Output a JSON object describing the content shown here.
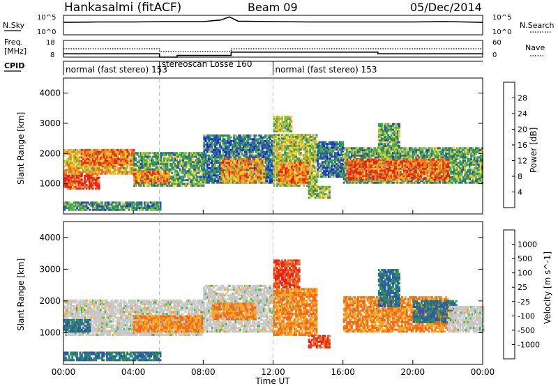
{
  "header": {
    "title": "Hankasalmi (fitACF)",
    "beam": "Beam 09",
    "date": "05/Dec/2014"
  },
  "nsky_panel": {
    "left_label": "N.Sky",
    "right_label": "N.Search",
    "left_ticks": [
      "10^5",
      "10^0"
    ],
    "right_ticks": [
      "10^5",
      "10^0"
    ]
  },
  "freq_panel": {
    "left_label_1": "Freq.",
    "left_label_2": "[MHz]",
    "right_label": "Nave",
    "left_ticks": [
      "18",
      "8"
    ],
    "right_ticks": [
      "60",
      "0"
    ]
  },
  "cpid": {
    "label": "CPID",
    "segments": [
      {
        "text": "normal (fast stereo) 153",
        "start_hour": 0
      },
      {
        "text": "stereoscan Losse 160",
        "start_hour": 5.5
      },
      {
        "text": "normal (fast stereo) 153",
        "start_hour": 12
      }
    ]
  },
  "power_panel": {
    "ylabel": "Slant Range [km]",
    "yticks": [
      "4000",
      "3000",
      "2000",
      "1000"
    ],
    "colorbar_label": "Power [dB]",
    "colorbar_ticks": [
      "28",
      "24",
      "20",
      "16",
      "12",
      "8",
      "4"
    ],
    "colors": [
      "#1a1aff",
      "#2a4fb0",
      "#2e7f6e",
      "#3aa35a",
      "#8fc03a",
      "#f0d02a",
      "#f5a623",
      "#f06a1e",
      "#e8231c"
    ]
  },
  "velocity_panel": {
    "ylabel": "Slant Range [km]",
    "yticks": [
      "4000",
      "3000",
      "2000",
      "1000"
    ],
    "colorbar_label": "Velocity [m s^-1]",
    "colorbar_ticks": [
      "1000",
      "500",
      "100",
      "25",
      "-25",
      "-100",
      "-500",
      "-1000"
    ],
    "colors": [
      "#1a3cff",
      "#2a5aa8",
      "#2e8a60",
      "#47b848",
      "#c8c8c8",
      "#c8c8c8",
      "#f5a623",
      "#f06a1e",
      "#e8231c"
    ]
  },
  "xaxis": {
    "label": "Time UT",
    "ticks": [
      "00:00",
      "04:00",
      "08:00",
      "12:00",
      "16:00",
      "20:00",
      "00:00"
    ]
  },
  "chart_data": [
    {
      "type": "line",
      "title": "N.Sky / N.Search",
      "x_unit": "hour UT",
      "xlim": [
        0,
        24
      ],
      "ylim": [
        0,
        5
      ],
      "note_scale": "log10",
      "series": [
        {
          "name": "N.Sky",
          "x": [
            0,
            2,
            4,
            6,
            8,
            9,
            9.5,
            10,
            12,
            14,
            16,
            18,
            20,
            22,
            24
          ],
          "values": [
            3.2,
            3.3,
            3.3,
            3.4,
            3.4,
            3.8,
            4.6,
            3.5,
            3.4,
            3.3,
            3.3,
            3.3,
            3.3,
            3.4,
            3.2
          ]
        }
      ]
    },
    {
      "type": "line",
      "title": "Freq / Nave",
      "x_unit": "hour UT",
      "xlim": [
        0,
        24
      ],
      "series": [
        {
          "name": "Freq",
          "x": [
            0,
            5.5,
            5.5,
            6.5,
            6.5,
            9.6,
            9.6,
            18,
            18,
            24
          ],
          "values": [
            10,
            10,
            8,
            8,
            9,
            9,
            11,
            11,
            10,
            10
          ]
        },
        {
          "name": "Nave",
          "x": [
            0,
            5.5,
            5.5,
            9.6,
            9.6,
            24
          ],
          "values": [
            30,
            30,
            20,
            20,
            30,
            30
          ]
        }
      ]
    },
    {
      "type": "heatmap",
      "title": "Power [dB]",
      "x_unit": "hour UT",
      "y_unit": "km",
      "xlim": [
        0,
        24
      ],
      "ylim": [
        0,
        4500
      ],
      "clim": [
        0,
        30
      ],
      "regions": [
        {
          "t0": 0.0,
          "t1": 2.0,
          "r0": 800,
          "r1": 1300,
          "value": 28
        },
        {
          "t0": 0.0,
          "t1": 4.0,
          "r0": 1300,
          "r1": 2100,
          "value": 20
        },
        {
          "t0": 1.0,
          "t1": 4.0,
          "r0": 1600,
          "r1": 2100,
          "value": 24
        },
        {
          "t0": 4.0,
          "t1": 8.0,
          "r0": 900,
          "r1": 2000,
          "value": 12
        },
        {
          "t0": 4.0,
          "t1": 6.0,
          "r0": 1000,
          "r1": 1400,
          "value": 24
        },
        {
          "t0": 8.0,
          "t1": 12.0,
          "r0": 1000,
          "r1": 2600,
          "value": 8
        },
        {
          "t0": 9.0,
          "t1": 11.5,
          "r0": 1000,
          "r1": 1800,
          "value": 22
        },
        {
          "t0": 12.0,
          "t1": 14.5,
          "r0": 900,
          "r1": 2600,
          "value": 16
        },
        {
          "t0": 12.3,
          "t1": 14.0,
          "r0": 1000,
          "r1": 1700,
          "value": 24
        },
        {
          "t0": 14.5,
          "t1": 16.0,
          "r0": 1200,
          "r1": 2400,
          "value": 8
        },
        {
          "t0": 16.0,
          "t1": 24.0,
          "r0": 1000,
          "r1": 2200,
          "value": 12
        },
        {
          "t0": 16.2,
          "t1": 22.0,
          "r0": 1100,
          "r1": 1800,
          "value": 26
        },
        {
          "t0": 14.0,
          "t1": 15.2,
          "r0": 500,
          "r1": 900,
          "value": 14
        },
        {
          "t0": 18.0,
          "t1": 19.2,
          "r0": 1800,
          "r1": 3000,
          "value": 12
        },
        {
          "t0": 12.0,
          "t1": 13.0,
          "r0": 2700,
          "r1": 3200,
          "value": 16
        },
        {
          "t0": 0.0,
          "t1": 5.5,
          "r0": 100,
          "r1": 400,
          "value": 10
        }
      ]
    },
    {
      "type": "heatmap",
      "title": "Velocity [m s^-1]",
      "x_unit": "hour UT",
      "y_unit": "km",
      "xlim": [
        0,
        24
      ],
      "ylim": [
        0,
        4500
      ],
      "clim": [
        -1000,
        1000
      ],
      "regions": [
        {
          "t0": 0.0,
          "t1": 8.0,
          "r0": 900,
          "r1": 2000,
          "value": 0
        },
        {
          "t0": 0.0,
          "t1": 1.5,
          "r0": 1000,
          "r1": 1400,
          "value": 100
        },
        {
          "t0": 4.0,
          "t1": 8.0,
          "r0": 1000,
          "r1": 1500,
          "value": -100
        },
        {
          "t0": 8.0,
          "t1": 12.0,
          "r0": 1000,
          "r1": 2500,
          "value": 0
        },
        {
          "t0": 8.5,
          "t1": 11.0,
          "r0": 1400,
          "r1": 1900,
          "value": -100
        },
        {
          "t0": 12.0,
          "t1": 14.5,
          "r0": 900,
          "r1": 2400,
          "value": -100
        },
        {
          "t0": 12.0,
          "t1": 13.5,
          "r0": 2400,
          "r1": 3300,
          "value": -500
        },
        {
          "t0": 14.0,
          "t1": 15.2,
          "r0": 500,
          "r1": 900,
          "value": -500
        },
        {
          "t0": 16.0,
          "t1": 22.0,
          "r0": 1000,
          "r1": 2100,
          "value": -100
        },
        {
          "t0": 20.0,
          "t1": 22.5,
          "r0": 1300,
          "r1": 2000,
          "value": 100
        },
        {
          "t0": 18.0,
          "t1": 19.2,
          "r0": 1800,
          "r1": 3000,
          "value": 100
        },
        {
          "t0": 22.0,
          "t1": 24.0,
          "r0": 1000,
          "r1": 1800,
          "value": 0
        },
        {
          "t0": 0.0,
          "t1": 5.5,
          "r0": 100,
          "r1": 400,
          "value": 100
        }
      ]
    }
  ]
}
